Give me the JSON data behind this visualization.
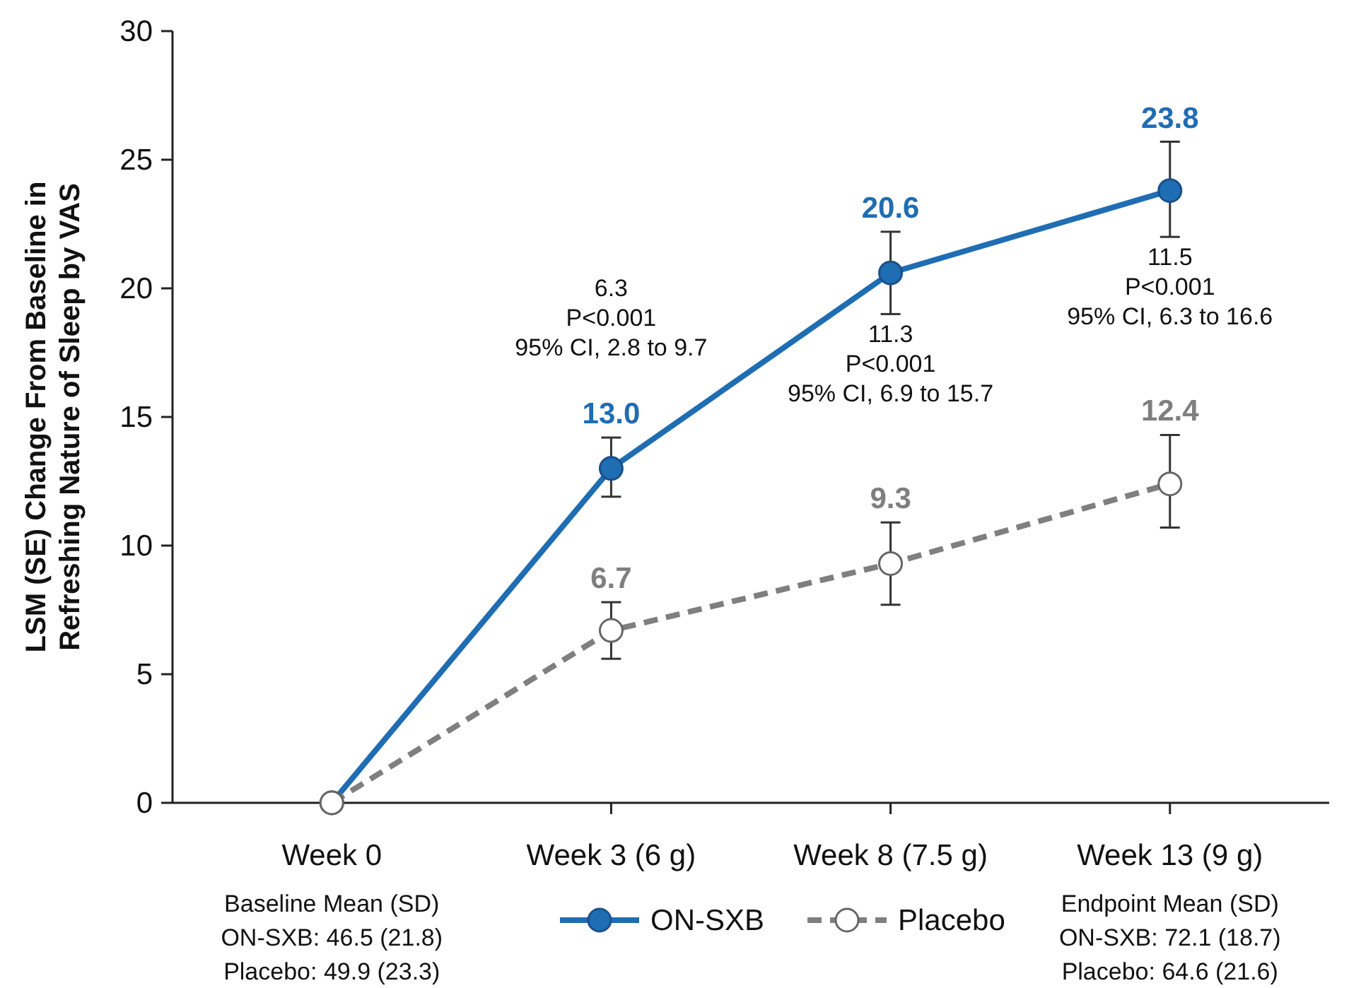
{
  "chart_data": {
    "type": "line",
    "ylabel": "LSM (SE) Change From Baseline in\nRefreshing Nature of Sleep by VAS",
    "categories": [
      "Week 0",
      "Week 3 (6 g)",
      "Week 8 (7.5 g)",
      "Week 13 (9 g)"
    ],
    "series": [
      {
        "name": "ON-SXB",
        "color": "#1f6db3",
        "line_style": "solid",
        "values": [
          0,
          13.0,
          20.6,
          23.8
        ],
        "errors": [
          null,
          [
            11.9,
            14.2
          ],
          [
            19.0,
            22.2
          ],
          [
            22.0,
            25.7
          ]
        ],
        "value_labels": [
          null,
          "13.0",
          "20.6",
          "23.8"
        ]
      },
      {
        "name": "Placebo",
        "color": "#7f7f7f",
        "line_style": "dashed",
        "values": [
          0,
          6.7,
          9.3,
          12.4
        ],
        "errors": [
          null,
          [
            5.6,
            7.8
          ],
          [
            7.7,
            10.9
          ],
          [
            10.7,
            14.3
          ]
        ],
        "value_labels": [
          null,
          "6.7",
          "9.3",
          "12.4"
        ]
      }
    ],
    "ylim": [
      0,
      30
    ],
    "yticks": [
      0,
      5,
      10,
      15,
      20,
      25,
      30
    ],
    "grid": false,
    "legend": "bottom",
    "marker": "circle",
    "annotations": [
      "6.3\nP<0.001\n95% CI, 2.8 to 9.7",
      "11.3\nP<0.001\n95% CI, 6.9 to 15.7",
      "11.5\nP<0.001\n95% CI, 6.3 to 16.6",
      "Baseline Mean (SD)\nON-SXB: 46.5 (21.8)\nPlacebo: 49.9 (23.3)",
      "Endpoint Mean (SD)\nON-SXB: 72.1 (18.7)\nPlacebo: 64.6 (21.6)"
    ]
  }
}
